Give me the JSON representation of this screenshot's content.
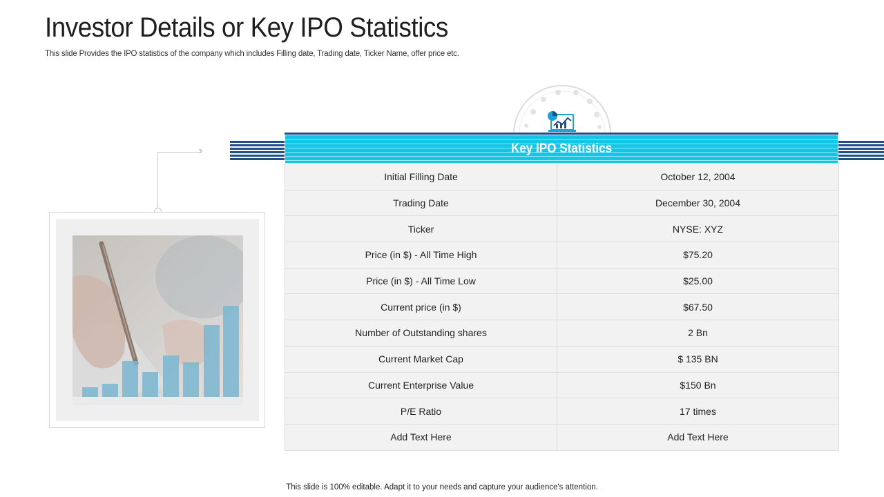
{
  "slide": {
    "title": "Investor Details or Key IPO Statistics",
    "subtitle": "This slide Provides the IPO statistics of the company which includes Filling date, Trading date, Ticker Name, offer price etc.",
    "footer": "This slide is 100% editable. Adapt it to your needs and capture your audience's attention."
  },
  "table": {
    "header": "Key IPO Statistics",
    "rows": [
      {
        "label": "Initial Filling Date",
        "value": "October 12, 2004"
      },
      {
        "label": "Trading Date",
        "value": "December 30, 2004"
      },
      {
        "label": "Ticker",
        "value": "NYSE: XYZ"
      },
      {
        "label": "Price (in $) - All Time High",
        "value": "$75.20"
      },
      {
        "label": "Price (in $) - All Time Low",
        "value": "$25.00"
      },
      {
        "label": "Current price (in $)",
        "value": "$67.50"
      },
      {
        "label": "Number of Outstanding shares",
        "value": "2 Bn"
      },
      {
        "label": "Current Market Cap",
        "value": "$ 135 BN"
      },
      {
        "label": "Current Enterprise Value",
        "value": "$150 Bn"
      },
      {
        "label": "P/E Ratio",
        "value": "17 times"
      },
      {
        "label": "Add Text Here",
        "value": "Add Text Here"
      }
    ]
  },
  "colors": {
    "accent_cyan": "#14c5e6",
    "accent_navy": "#1f4e89",
    "row_bg": "#f2f2f2"
  },
  "icons": [
    "chart-laptop-icon",
    "chevron-arrows-icon"
  ],
  "photo": {
    "description_icon": "pen-and-bar-chart-photo"
  }
}
